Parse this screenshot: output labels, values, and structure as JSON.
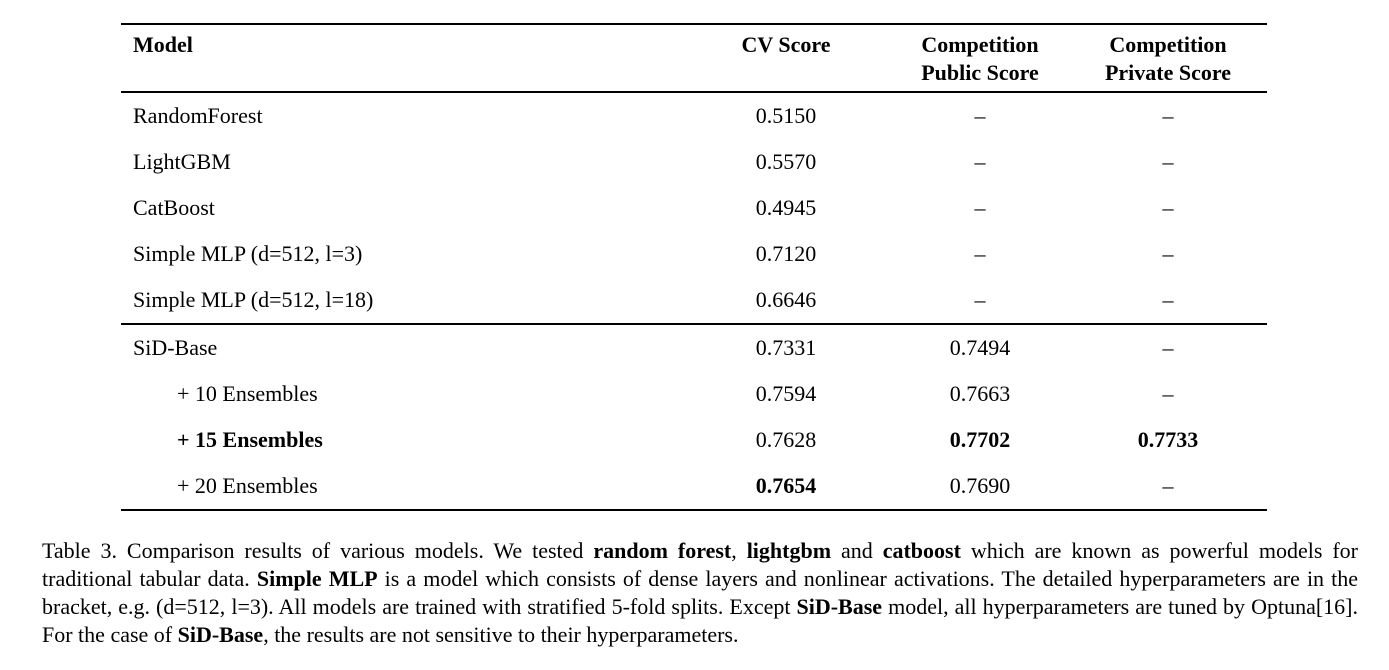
{
  "table": {
    "columns": [
      {
        "line1": "Model",
        "line2": ""
      },
      {
        "line1": "CV Score",
        "line2": ""
      },
      {
        "line1": "Competition",
        "line2": "Public Score"
      },
      {
        "line1": "Competition",
        "line2": "Private Score"
      }
    ],
    "empty_marker": "–",
    "groups": [
      {
        "rows": [
          {
            "model": "RandomForest",
            "cv": "0.5150",
            "public": "–",
            "private": "–"
          },
          {
            "model": "LightGBM",
            "cv": "0.5570",
            "public": "–",
            "private": "–"
          },
          {
            "model": "CatBoost",
            "cv": "0.4945",
            "public": "–",
            "private": "–"
          },
          {
            "model": "Simple MLP (d=512, l=3)",
            "cv": "0.7120",
            "public": "–",
            "private": "–"
          },
          {
            "model": "Simple MLP (d=512, l=18)",
            "cv": "0.6646",
            "public": "–",
            "private": "–"
          }
        ]
      },
      {
        "rows": [
          {
            "model": "SiD-Base",
            "cv": "0.7331",
            "public": "0.7494",
            "private": "–"
          },
          {
            "model": "+ 10 Ensembles",
            "indent": true,
            "cv": "0.7594",
            "public": "0.7663",
            "private": "–"
          },
          {
            "model": "+ 15 Ensembles",
            "indent": true,
            "model_bold": true,
            "cv": "0.7628",
            "public": "0.7702",
            "public_bold": true,
            "private": "0.7733",
            "private_bold": true
          },
          {
            "model": "+ 20 Ensembles",
            "indent": true,
            "cv": "0.7654",
            "cv_bold": true,
            "public": "0.7690",
            "private": "–"
          }
        ]
      }
    ]
  },
  "caption": {
    "segments": [
      {
        "text": "Table 3. Comparison results of various models. We tested ",
        "bold": false
      },
      {
        "text": "random forest",
        "bold": true
      },
      {
        "text": ", ",
        "bold": false
      },
      {
        "text": "lightgbm",
        "bold": true
      },
      {
        "text": " and ",
        "bold": false
      },
      {
        "text": "catboost",
        "bold": true
      },
      {
        "text": " which are known as powerful models for traditional tabular data. ",
        "bold": false
      },
      {
        "text": "Simple MLP",
        "bold": true
      },
      {
        "text": " is a model which consists of dense layers and nonlinear activations. The detailed hyperparameters are in the bracket, e.g. (d=512, l=3). All models are trained with stratified 5-fold splits. Except ",
        "bold": false
      },
      {
        "text": "SiD-Base",
        "bold": true
      },
      {
        "text": " model, all hyperparameters are tuned by Optuna[16]. For the case of ",
        "bold": false
      },
      {
        "text": "SiD-Base",
        "bold": true
      },
      {
        "text": ", the results are not sensitive to their hyperparameters.",
        "bold": false
      }
    ]
  }
}
